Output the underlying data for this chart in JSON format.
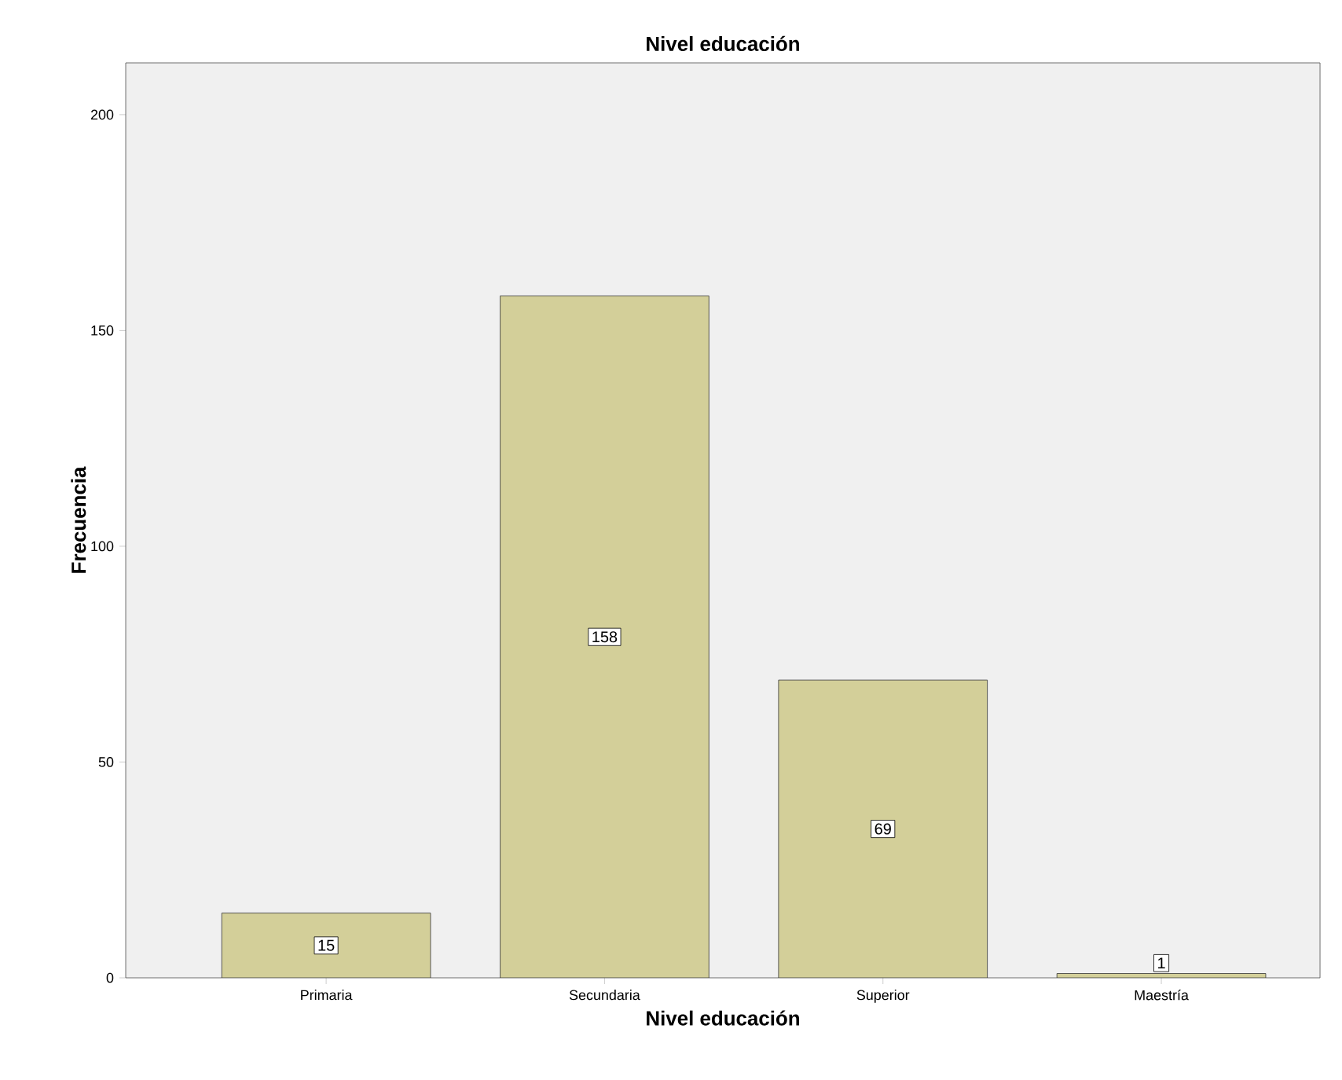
{
  "chart_data": {
    "type": "bar",
    "title": "Nivel educación",
    "xlabel": "Nivel educación",
    "ylabel": "Frecuencia",
    "categories": [
      "Primaria",
      "Secundaria",
      "Superior",
      "Maestría"
    ],
    "values": [
      15,
      158,
      69,
      1
    ],
    "color": "#d3cf99",
    "ylim": [
      0,
      212
    ],
    "yticks": [
      0,
      50,
      100,
      150,
      200
    ],
    "data_labels": true,
    "grid": false
  }
}
